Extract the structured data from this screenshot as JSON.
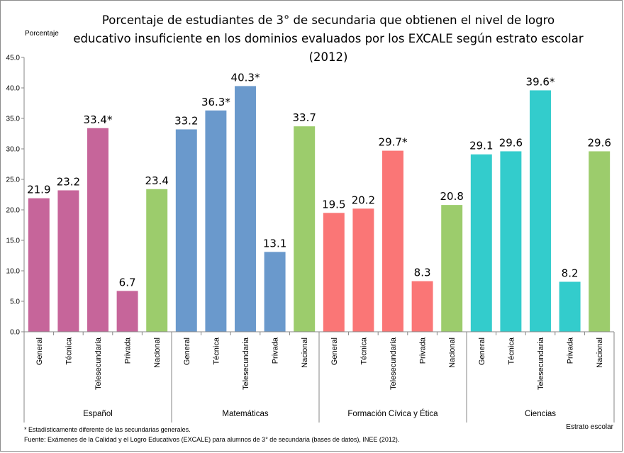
{
  "chart_data": {
    "type": "bar",
    "title_lines": [
      "Porcentaje de estudiantes  de 3° de secundaria  que obtienen el nivel de logro",
      "educativo insuficiente  en los dominios evaluados  por los EXCALE según estrato escolar",
      "(2012)"
    ],
    "ylabel": "Porcentaje",
    "xlabel": "Estrato escolar",
    "ylim": [
      0,
      45
    ],
    "yticks": [
      "0.0",
      "5.0",
      "10.0",
      "15.0",
      "20.0",
      "25.0",
      "30.0",
      "35.0",
      "40.0",
      "45.0"
    ],
    "groups": [
      {
        "name": "Español",
        "color": "#c6659a",
        "categories": [
          "General",
          "Técnica",
          "Telesecundaria",
          "Privada",
          "Nacional"
        ],
        "values": [
          21.9,
          23.2,
          33.4,
          6.7,
          23.4
        ],
        "labels": [
          "21.9",
          "23.2",
          "33.4*",
          "6.7",
          "23.4"
        ]
      },
      {
        "name": "Matemáticas",
        "color": "#6a99cc",
        "categories": [
          "General",
          "Técnica",
          "Telesecundaria",
          "Privada",
          "Nacional"
        ],
        "values": [
          33.2,
          36.3,
          40.3,
          13.1,
          33.7
        ],
        "labels": [
          "33.2",
          "36.3*",
          "40.3*",
          "13.1",
          "33.7"
        ]
      },
      {
        "name": "Formación Cívica y Ética",
        "color": "#fa7676",
        "categories": [
          "General",
          "Técnica",
          "Telesecundaria",
          "Privada",
          "Nacional"
        ],
        "values": [
          19.5,
          20.2,
          29.7,
          8.3,
          20.8
        ],
        "labels": [
          "19.5",
          "20.2",
          "29.7*",
          "8.3",
          "20.8"
        ]
      },
      {
        "name": "Ciencias",
        "color": "#33cccc",
        "categories": [
          "General",
          "Técnica",
          "Telesecundaria",
          "Privada",
          "Nacional"
        ],
        "values": [
          29.1,
          29.6,
          39.6,
          8.2,
          29.6
        ],
        "labels": [
          "29.1",
          "29.6",
          "39.6*",
          "8.2",
          "29.6"
        ]
      }
    ],
    "nacional_color": "#9ccc6c",
    "grid": false,
    "legend": "none"
  },
  "notes": {
    "asterisk": "*  Estadísticamente diferente de las secundarias generales.",
    "source": "Fuente: Exámenes de la Calidad y el Logro Educativos (EXCALE) para alumnos de 3° de secundaria (bases de datos), INEE (2012)."
  }
}
